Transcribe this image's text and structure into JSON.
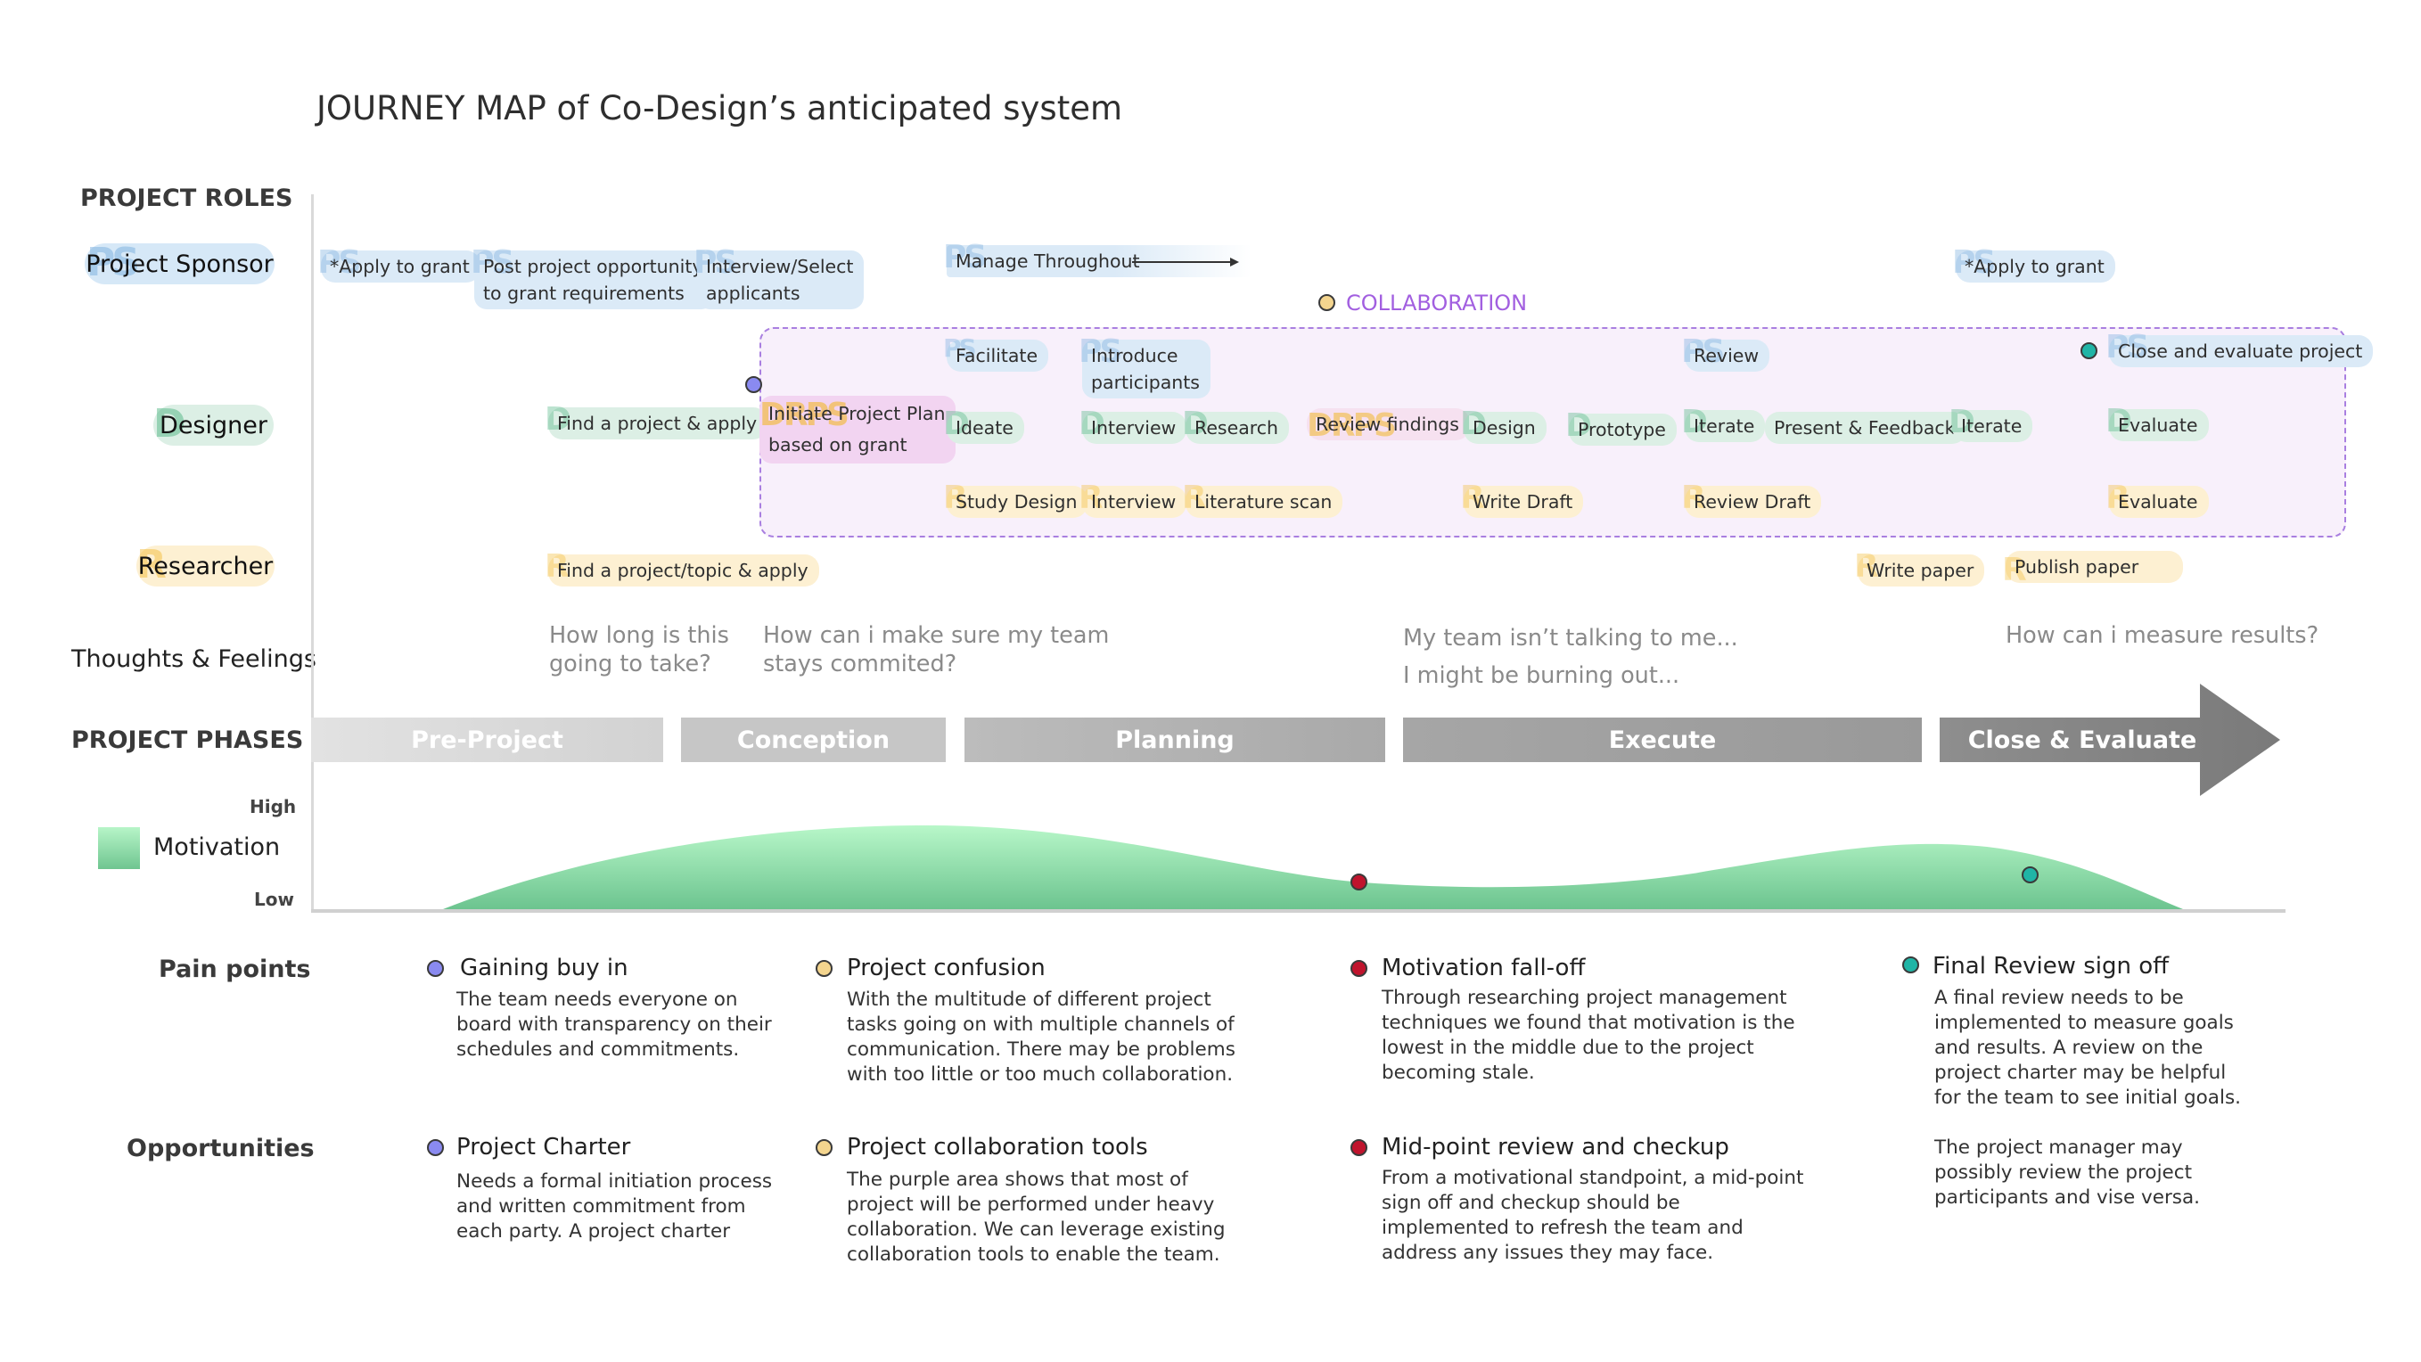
{
  "title": "JOURNEY MAP of Co-Design’s anticipated system",
  "labels": {
    "project_roles": "PROJECT ROLES",
    "thoughts": "Thoughts & Feelings",
    "project_phases": "PROJECT PHASES",
    "pain_points": "Pain points",
    "opportunities": "Opportunities",
    "motivation": "Motivation",
    "high": "High",
    "low": "Low",
    "collaboration": "COLLABORATION"
  },
  "roles": {
    "sponsor": {
      "label": "Project Sponsor",
      "mark": "PS"
    },
    "designer": {
      "label": "Designer",
      "mark": "D"
    },
    "researcher": {
      "label": "Researcher",
      "mark": "R"
    }
  },
  "tasks": {
    "apply_grant_1": "*Apply to grant",
    "post_opportunity_1": "Post project opportunity",
    "post_opportunity_2": "to grant requirements",
    "interview_select_1": "Interview/Select",
    "interview_select_2": "applicants",
    "manage_throughout": "Manage Throughout",
    "apply_grant_2": "*Apply to grant",
    "facilitate": "Facilitate",
    "introduce_1": "Introduce",
    "introduce_2": "participants",
    "review": "Review",
    "close_evaluate": "Close and evaluate project",
    "find_project_apply": "Find a project & apply",
    "initiate_plan_1": "Initiate Project Plan",
    "initiate_plan_2": "based on grant",
    "ideate": "Ideate",
    "interview_d": "Interview",
    "research": "Research",
    "review_findings": "Review findings",
    "design": "Design",
    "prototype": "Prototype",
    "iterate_1": "Iterate",
    "present_feedback": "Present & Feedback",
    "iterate_2": "Iterate",
    "evaluate_d": "Evaluate",
    "study_design": "Study Design",
    "interview_r": "Interview",
    "literature_scan": "Literature scan",
    "write_draft": "Write Draft",
    "review_draft": "Review Draft",
    "evaluate_r": "Evaluate",
    "find_topic_apply": "Find a project/topic & apply",
    "write_paper": "Write paper",
    "publish_paper": "Publish paper"
  },
  "thoughts": {
    "t1_a": "How long is this",
    "t1_b": "going to take?",
    "t2_a": "How can i make sure my team",
    "t2_b": "stays commited?",
    "t3_a": "My team isn’t talking to me...",
    "t3_b": "I might be burning out...",
    "t4": "How can i measure results?"
  },
  "phases": [
    "Pre-Project",
    "Conception",
    "Planning",
    "Execute",
    "Close & Evaluate"
  ],
  "motivation_curve": {
    "scale": [
      "Low",
      "High"
    ],
    "stages_relative_level": {
      "Pre-Project": 0.0,
      "Conception": 0.95,
      "Planning": 0.55,
      "Execute mid": 0.35,
      "Execute late": 0.75,
      "Close & Evaluate": 0.0
    }
  },
  "pain_points": [
    {
      "title": "Gaining buy in",
      "color": "#8a8af0",
      "lines": [
        "The team needs everyone on",
        "board with transparency on their",
        "schedules and commitments."
      ]
    },
    {
      "title": "Project confusion",
      "color": "#f4d58e",
      "lines": [
        "With the multitude of different project",
        "tasks going on with multiple channels of",
        "communication. There may be problems",
        "with too little or too much collaboration."
      ]
    },
    {
      "title": "Motivation fall-off",
      "color": "#c0142d",
      "lines": [
        "Through researching project management",
        "techniques we found that motivation is the",
        "lowest in the middle due to the project",
        "becoming stale."
      ]
    },
    {
      "title": "Final Review sign off",
      "color": "#20b5a6",
      "lines": [
        "A final review needs to be",
        "implemented to measure goals",
        "and results. A review on the",
        "project charter may be helpful",
        "for the team to see initial goals."
      ]
    }
  ],
  "opportunities": [
    {
      "title": "Project Charter",
      "color": "#8a8af0",
      "lines": [
        "Needs a formal initiation process",
        "and written commitment from",
        "each party. A project charter"
      ]
    },
    {
      "title": "Project collaboration tools",
      "color": "#f4d58e",
      "lines": [
        "The purple area shows that most of",
        "project will be performed under heavy",
        "collaboration. We can leverage existing",
        "collaboration tools to enable the team."
      ]
    },
    {
      "title": "Mid-point review and checkup",
      "color": "#c0142d",
      "lines": [
        "From a motivational standpoint, a mid-point",
        "sign off and checkup should be",
        "implemented to refresh the team and",
        "address any issues they may face."
      ]
    },
    {
      "title": "",
      "color": "",
      "lines": [
        "The project manager may",
        "possibly review the project",
        "participants and vise versa."
      ]
    }
  ]
}
